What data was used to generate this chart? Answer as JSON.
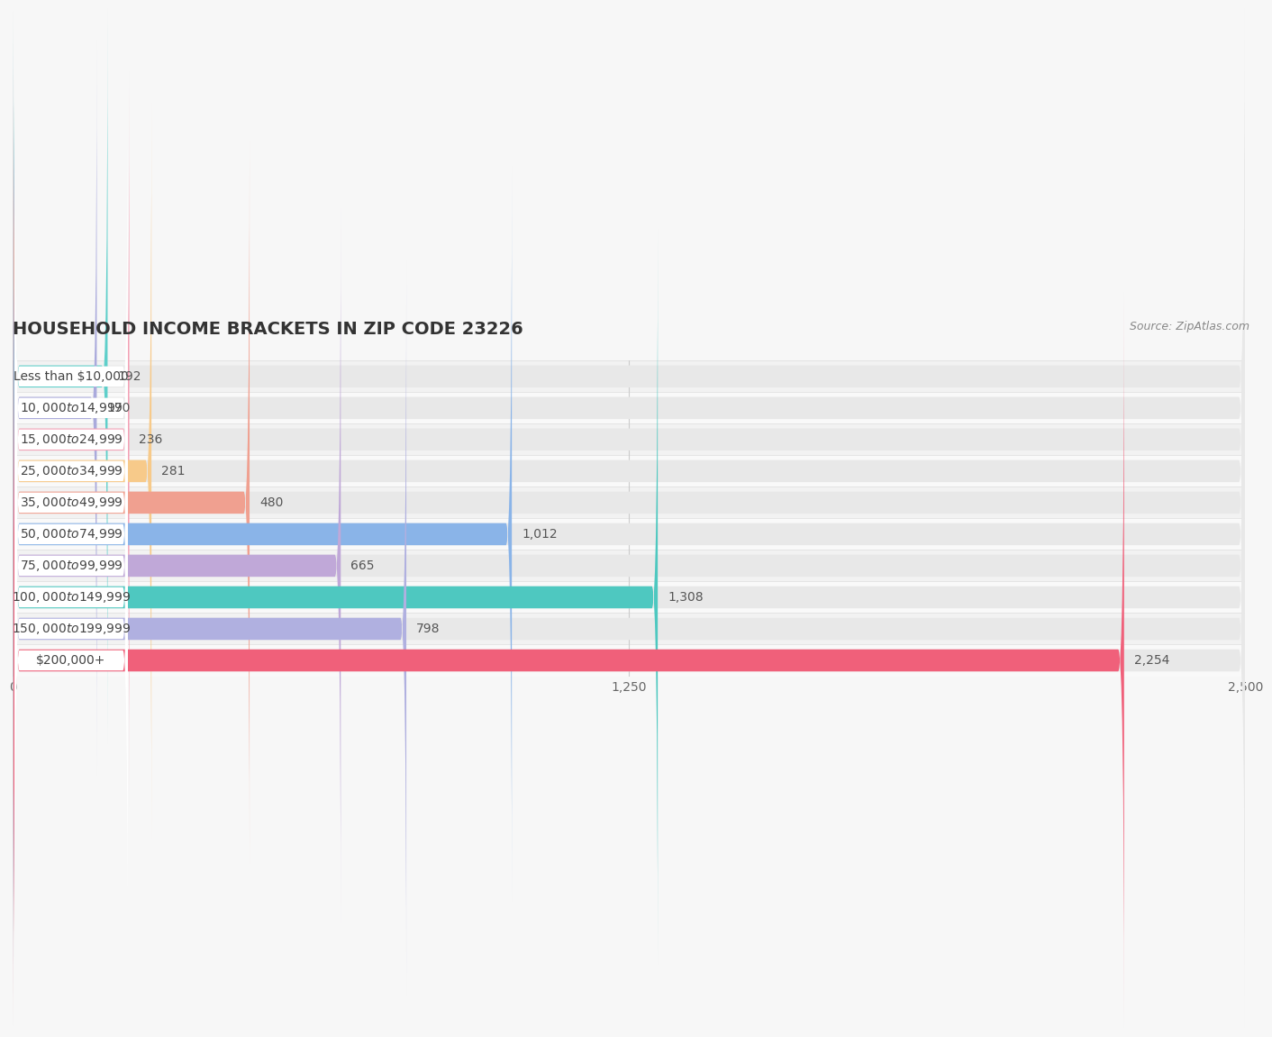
{
  "title": "HOUSEHOLD INCOME BRACKETS IN ZIP CODE 23226",
  "source": "Source: ZipAtlas.com",
  "categories": [
    "Less than $10,000",
    "$10,000 to $14,999",
    "$15,000 to $24,999",
    "$25,000 to $34,999",
    "$35,000 to $49,999",
    "$50,000 to $74,999",
    "$75,000 to $99,999",
    "$100,000 to $149,999",
    "$150,000 to $199,999",
    "$200,000+"
  ],
  "values": [
    192,
    170,
    236,
    281,
    480,
    1012,
    665,
    1308,
    798,
    2254
  ],
  "bar_colors": [
    "#5ecfca",
    "#aaaadc",
    "#f4a0b5",
    "#f7ca8a",
    "#f0a090",
    "#8ab4e8",
    "#c0a8d8",
    "#4ec8c0",
    "#b0b0e0",
    "#f0607a"
  ],
  "xlim": [
    0,
    2500
  ],
  "xticks": [
    0,
    1250,
    2500
  ],
  "background_color": "#f7f7f7",
  "bar_bg_color": "#e8e8e8",
  "row_bg_even": "#f0f0f0",
  "row_bg_odd": "#fafafa",
  "title_fontsize": 14,
  "label_fontsize": 10,
  "value_fontsize": 10
}
